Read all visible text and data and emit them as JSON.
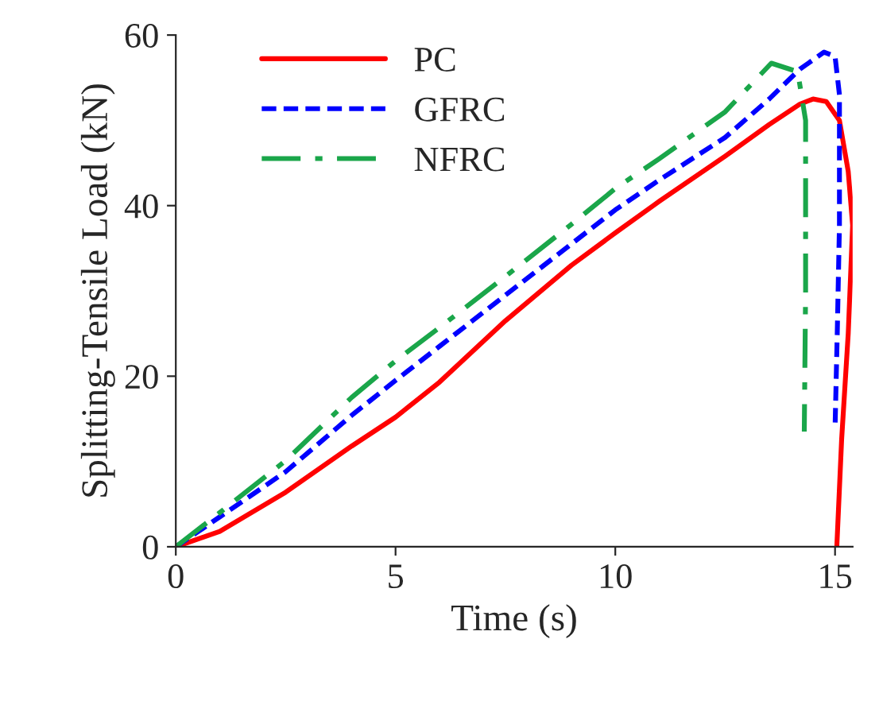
{
  "chart_data": {
    "type": "line",
    "xlabel": "Time (s)",
    "ylabel": "Splitting-Tensile Load (kN)",
    "xlim": [
      0,
      15.4
    ],
    "ylim": [
      0,
      60
    ],
    "xticks": [
      0,
      5,
      10,
      15
    ],
    "yticks": [
      0,
      20,
      40,
      60
    ],
    "grid": false,
    "legend": "top left",
    "series": [
      {
        "name": "PC",
        "color": "#ff0000",
        "line_style": "solid",
        "x": [
          0,
          1,
          2.5,
          4,
          5,
          6,
          7.5,
          9,
          10,
          11,
          12.5,
          13.5,
          14.2,
          14.5,
          14.8,
          15.1,
          15.3,
          15.4,
          15.3,
          15.15,
          15.04
        ],
        "values": [
          0,
          1.8,
          6.4,
          11.8,
          15.2,
          19.3,
          26.5,
          33,
          36.8,
          40.5,
          45.8,
          49.5,
          51.9,
          52.5,
          52.2,
          50,
          44,
          37.7,
          25,
          12.6,
          0
        ]
      },
      {
        "name": "GFRC",
        "color": "#0000ff",
        "line_style": "dashed",
        "x": [
          0,
          1,
          2.5,
          4,
          5,
          6,
          7.5,
          9,
          10,
          11,
          12.5,
          13.5,
          14.2,
          14.75,
          15.0,
          15.1,
          15.1,
          15.05,
          15.0
        ],
        "values": [
          0,
          3.5,
          8.8,
          15.4,
          19.5,
          23.5,
          29.5,
          35.5,
          39.5,
          43,
          48,
          52.5,
          56,
          58,
          57.5,
          53,
          37.7,
          25,
          13.9
        ]
      },
      {
        "name": "NFRC",
        "color": "#1aa64a",
        "line_style": "dashdot",
        "x": [
          0,
          1,
          2.5,
          4,
          5,
          6,
          7.5,
          9,
          10,
          11,
          12.5,
          13.55,
          14.15,
          14.33,
          14.33,
          14.3
        ],
        "values": [
          0,
          4,
          10.1,
          17.5,
          21.8,
          25.7,
          31.7,
          37.8,
          42,
          45.5,
          51,
          56.7,
          55.7,
          50,
          30,
          13.5
        ]
      }
    ]
  }
}
